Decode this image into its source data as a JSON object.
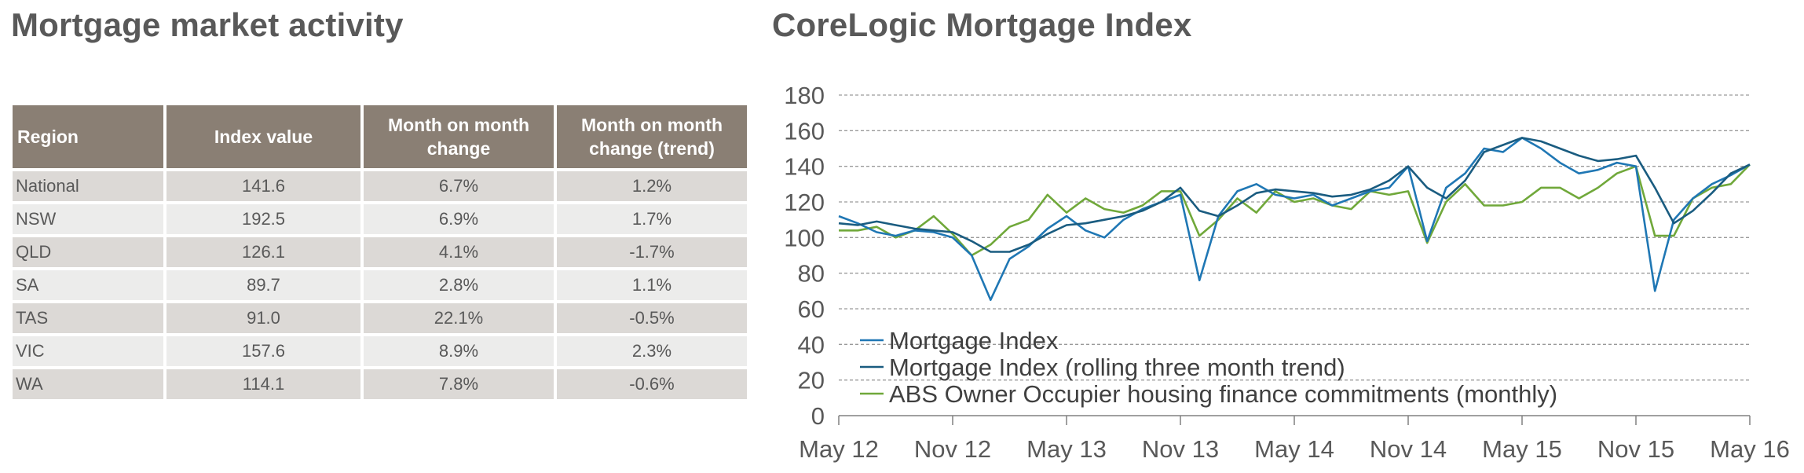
{
  "left_title": "Mortgage market activity",
  "right_title": "CoreLogic Mortgage Index",
  "table": {
    "headers": [
      "Region",
      "Index value",
      "Month on month change",
      "Month on month change (trend)"
    ],
    "rows": [
      [
        "National",
        "141.6",
        "6.7%",
        "1.2%"
      ],
      [
        "NSW",
        "192.5",
        "6.9%",
        "1.7%"
      ],
      [
        "QLD",
        "126.1",
        "4.1%",
        "-1.7%"
      ],
      [
        "SA",
        "89.7",
        "2.8%",
        "1.1%"
      ],
      [
        "TAS",
        "91.0",
        "22.1%",
        "-0.5%"
      ],
      [
        "VIC",
        "157.6",
        "8.9%",
        "2.3%"
      ],
      [
        "WA",
        "114.1",
        "7.8%",
        "-0.6%"
      ]
    ]
  },
  "chart_data": {
    "type": "line",
    "title": "CoreLogic Mortgage Index",
    "ylim": [
      0,
      180
    ],
    "y_ticks": [
      0,
      20,
      40,
      60,
      80,
      100,
      120,
      140,
      160,
      180
    ],
    "x_tick_labels": [
      "May 12",
      "Nov 12",
      "May 13",
      "Nov 13",
      "May 14",
      "Nov 14",
      "May 15",
      "Nov 15",
      "May 16"
    ],
    "grid": "horizontal-dashed",
    "legend_position": "bottom-left",
    "x": [
      "2012-05",
      "2012-06",
      "2012-07",
      "2012-08",
      "2012-09",
      "2012-10",
      "2012-11",
      "2012-12",
      "2013-01",
      "2013-02",
      "2013-03",
      "2013-04",
      "2013-05",
      "2013-06",
      "2013-07",
      "2013-08",
      "2013-09",
      "2013-10",
      "2013-11",
      "2013-12",
      "2014-01",
      "2014-02",
      "2014-03",
      "2014-04",
      "2014-05",
      "2014-06",
      "2014-07",
      "2014-08",
      "2014-09",
      "2014-10",
      "2014-11",
      "2014-12",
      "2015-01",
      "2015-02",
      "2015-03",
      "2015-04",
      "2015-05",
      "2015-06",
      "2015-07",
      "2015-08",
      "2015-09",
      "2015-10",
      "2015-11",
      "2015-12",
      "2016-01",
      "2016-02",
      "2016-03",
      "2016-04",
      "2016-05"
    ],
    "series": [
      {
        "name": "Mortgage Index",
        "color": "#1f77b4",
        "values": [
          112,
          108,
          103,
          101,
          104,
          103,
          100,
          90,
          65,
          88,
          95,
          105,
          112,
          104,
          100,
          110,
          116,
          120,
          124,
          76,
          112,
          126,
          130,
          124,
          122,
          124,
          118,
          122,
          126,
          128,
          140,
          98,
          128,
          136,
          150,
          148,
          156,
          150,
          142,
          136,
          138,
          142,
          140,
          70,
          110,
          122,
          130,
          135,
          141
        ]
      },
      {
        "name": "Mortgage Index (rolling three month trend)",
        "color": "#1a5c80",
        "values": [
          108,
          107,
          109,
          107,
          105,
          104,
          103,
          98,
          92,
          92,
          96,
          102,
          107,
          108,
          110,
          112,
          115,
          120,
          128,
          115,
          112,
          118,
          125,
          127,
          126,
          125,
          123,
          124,
          127,
          132,
          140,
          128,
          122,
          132,
          148,
          152,
          156,
          154,
          150,
          146,
          143,
          144,
          146,
          128,
          108,
          115,
          125,
          136,
          141
        ]
      },
      {
        "name": "ABS Owner Occupier housing finance commitments (monthly)",
        "color": "#70a83a",
        "values": [
          104,
          104,
          106,
          100,
          104,
          112,
          102,
          90,
          96,
          106,
          110,
          124,
          114,
          122,
          116,
          114,
          118,
          126,
          126,
          101,
          110,
          122,
          114,
          126,
          120,
          122,
          118,
          116,
          126,
          124,
          126,
          97,
          120,
          130,
          118,
          118,
          120,
          128,
          128,
          122,
          128,
          136,
          140,
          101,
          101,
          122,
          128,
          130,
          141
        ]
      }
    ]
  }
}
